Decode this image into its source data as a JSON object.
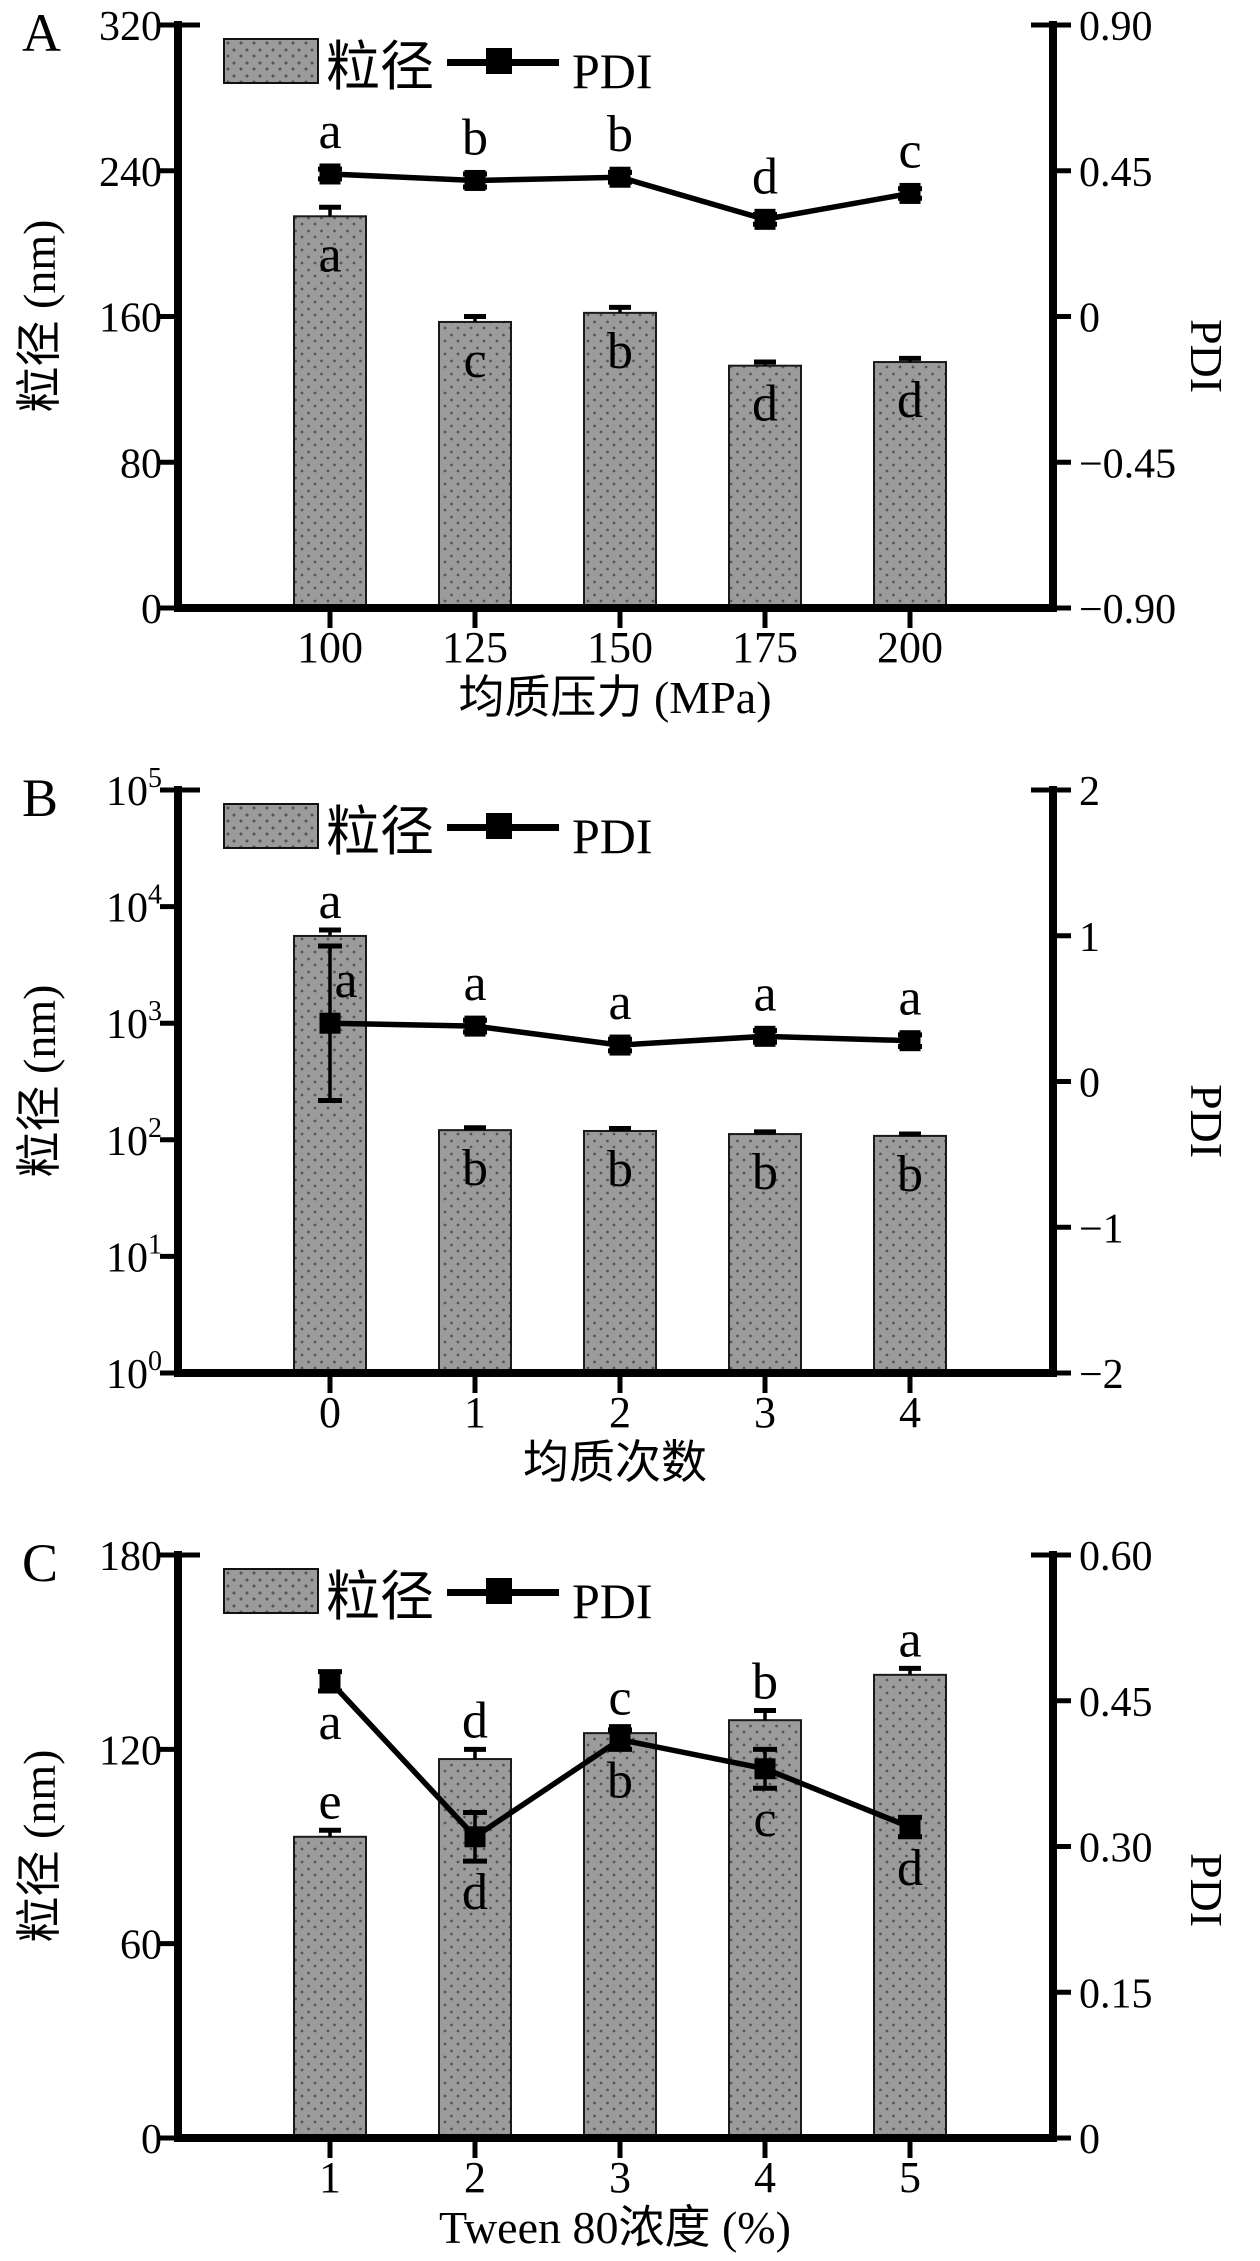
{
  "colors": {
    "ink": "#000000",
    "bar_fill": "#9b9b9b",
    "bar_dot": "#565656",
    "bar_border": "#1a1a1a",
    "background": "#ffffff"
  },
  "legend": {
    "bar_label": "粒径",
    "line_label": "PDI"
  },
  "chart_data": [
    {
      "type": "bar+line",
      "panel": "A",
      "x": {
        "label": "均质压力 (MPa)",
        "categories": [
          "100",
          "125",
          "150",
          "175",
          "200"
        ]
      },
      "y_left": {
        "label": "粒径 (nm)",
        "scale": "linear",
        "min": 0,
        "max": 320,
        "ticks": [
          320,
          240,
          160,
          80,
          0
        ],
        "tick_labels": [
          "320",
          "240",
          "160",
          "80",
          "0"
        ]
      },
      "y_right": {
        "label": "PDI",
        "min": -0.9,
        "max": 0.9,
        "ticks": [
          0.9,
          0.45,
          0,
          -0.45,
          -0.9
        ],
        "tick_labels": [
          "0.90",
          "0.45",
          "0",
          "−0.45",
          "−0.90"
        ]
      },
      "bars": {
        "name": "粒径",
        "values": [
          215,
          157,
          162,
          133,
          135
        ],
        "errors": [
          5,
          3,
          3,
          2,
          2
        ],
        "sig_letters": [
          "a",
          "c",
          "b",
          "d",
          "d"
        ],
        "letter_pos": [
          "inside",
          "inside",
          "inside",
          "inside",
          "inside"
        ]
      },
      "line": {
        "name": "PDI",
        "values": [
          0.44,
          0.42,
          0.43,
          0.3,
          0.38
        ],
        "errors": [
          0.015,
          0.02,
          0.015,
          0.015,
          0.015
        ],
        "sig_letters": [
          "a",
          "b",
          "b",
          "d",
          "c"
        ],
        "letter_pos": [
          "above",
          "above",
          "above",
          "above",
          "above"
        ],
        "letter_dx": [
          0,
          0,
          0,
          0,
          0
        ]
      }
    },
    {
      "type": "bar+line",
      "panel": "B",
      "x": {
        "label": "均质次数",
        "categories": [
          "0",
          "1",
          "2",
          "3",
          "4"
        ]
      },
      "y_left": {
        "label": "粒径 (nm)",
        "scale": "log",
        "min": 1,
        "max": 100000,
        "tick_exponents": [
          5,
          4,
          3,
          2,
          1,
          0
        ]
      },
      "y_right": {
        "label": "PDI",
        "min": -2,
        "max": 2,
        "ticks": [
          2,
          1,
          0,
          -1,
          -2
        ],
        "tick_labels": [
          "2",
          "1",
          "0",
          "−1",
          "−2"
        ]
      },
      "bars": {
        "name": "粒径",
        "values": [
          5600,
          121,
          119,
          112,
          108
        ],
        "errors": [
          700,
          6,
          6,
          5,
          4
        ],
        "sig_letters": [
          "a",
          "b",
          "b",
          "b",
          "b"
        ],
        "letter_pos": [
          "above",
          "inside",
          "inside",
          "inside",
          "inside"
        ]
      },
      "line": {
        "name": "PDI",
        "values": [
          0.4,
          0.38,
          0.25,
          0.31,
          0.28
        ],
        "errors": [
          0.53,
          0.04,
          0.04,
          0.04,
          0.04
        ],
        "sig_letters": [
          "a",
          "a",
          "a",
          "a",
          "a"
        ],
        "letter_pos": [
          "above",
          "above",
          "above",
          "above",
          "above"
        ],
        "letter_dx": [
          16,
          0,
          0,
          0,
          0
        ]
      }
    },
    {
      "type": "bar+line",
      "panel": "C",
      "x": {
        "label": "Tween 80浓度 (%)",
        "categories": [
          "1",
          "2",
          "3",
          "4",
          "5"
        ]
      },
      "y_left": {
        "label": "粒径 (nm)",
        "scale": "linear",
        "min": 0,
        "max": 180,
        "ticks": [
          180,
          120,
          60,
          0
        ],
        "tick_labels": [
          "180",
          "120",
          "60",
          "0"
        ]
      },
      "y_right": {
        "label": "PDI",
        "min": 0,
        "max": 0.6,
        "ticks": [
          0.6,
          0.45,
          0.3,
          0.15,
          0
        ],
        "tick_labels": [
          "0.60",
          "0.45",
          "0.30",
          "0.15",
          "0"
        ]
      },
      "bars": {
        "name": "粒径",
        "values": [
          93,
          117,
          125,
          129,
          143
        ],
        "errors": [
          2,
          3,
          2,
          3,
          2
        ],
        "sig_letters": [
          "e",
          "d",
          "c",
          "b",
          "a"
        ],
        "letter_pos": [
          "above",
          "above",
          "above",
          "above",
          "above"
        ]
      },
      "line": {
        "name": "PDI",
        "values": [
          0.47,
          0.31,
          0.41,
          0.38,
          0.32
        ],
        "errors": [
          0.01,
          0.025,
          0.01,
          0.02,
          0.01
        ],
        "sig_letters": [
          "a",
          "d",
          "b",
          "c",
          "d"
        ],
        "letter_pos": [
          "below",
          "below",
          "below",
          "below",
          "below"
        ],
        "letter_dx": [
          0,
          0,
          0,
          0,
          0
        ]
      }
    }
  ]
}
